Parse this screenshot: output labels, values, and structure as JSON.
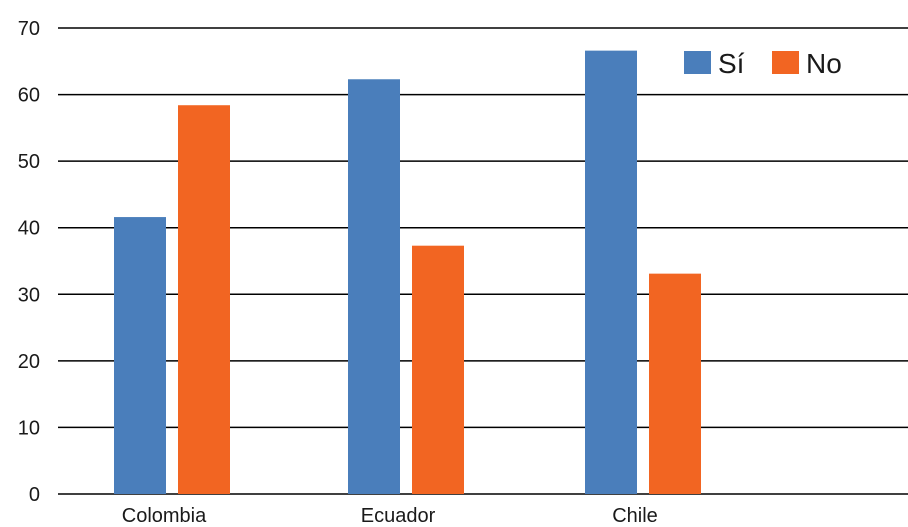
{
  "chart_data": {
    "type": "bar",
    "title": "",
    "xlabel": "",
    "ylabel": "",
    "categories": [
      "Colombia",
      "Ecuador",
      "Chile"
    ],
    "series": [
      {
        "name": "Sí",
        "values": [
          41.6,
          62.3,
          66.6
        ],
        "color": "#4a7ebb"
      },
      {
        "name": "No",
        "values": [
          58.4,
          37.3,
          33.1
        ],
        "color": "#f26522"
      }
    ],
    "ylim": [
      0,
      70
    ],
    "yticks": [
      0,
      10,
      20,
      30,
      40,
      50,
      60,
      70
    ],
    "grid": true,
    "legend_position": "top-right"
  }
}
